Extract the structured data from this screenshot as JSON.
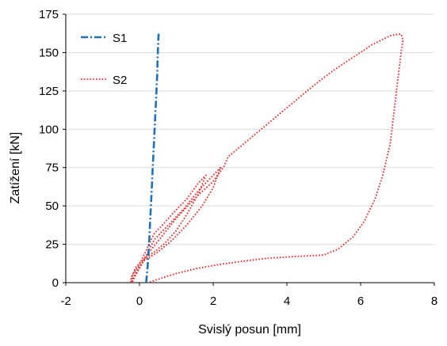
{
  "chart_data": {
    "type": "line",
    "xlabel": "Svislý posun [mm]",
    "ylabel": "Zatížení [kN]",
    "xlim": [
      -2,
      8
    ],
    "ylim": [
      0,
      175
    ],
    "x_ticks": [
      -2,
      0,
      2,
      4,
      6,
      8
    ],
    "y_ticks": [
      0,
      25,
      50,
      75,
      100,
      125,
      150,
      175
    ],
    "x_tick_labels": [
      "-2",
      "0",
      "2",
      "4",
      "6",
      "8"
    ],
    "y_tick_labels": [
      "0",
      "25",
      "50",
      "75",
      "100",
      "125",
      "150",
      "175"
    ],
    "grid": "horizontal",
    "legend_position": "top-left",
    "series": [
      {
        "name": "S1",
        "color": "#1f6fb4",
        "style": "dash-dot",
        "points": [
          [
            0.18,
            0
          ],
          [
            0.2,
            5
          ],
          [
            0.22,
            10
          ],
          [
            0.24,
            18
          ],
          [
            0.26,
            25
          ],
          [
            0.28,
            35
          ],
          [
            0.3,
            45
          ],
          [
            0.32,
            55
          ],
          [
            0.34,
            65
          ],
          [
            0.36,
            75
          ],
          [
            0.38,
            85
          ],
          [
            0.4,
            95
          ],
          [
            0.42,
            105
          ],
          [
            0.44,
            115
          ],
          [
            0.46,
            125
          ],
          [
            0.48,
            135
          ],
          [
            0.49,
            145
          ],
          [
            0.5,
            152
          ],
          [
            0.51,
            158
          ],
          [
            0.52,
            163
          ]
        ]
      },
      {
        "name": "S2",
        "color": "#e8201c",
        "style": "dotted",
        "points": [
          [
            -0.25,
            0
          ],
          [
            -0.2,
            5
          ],
          [
            0.0,
            12
          ],
          [
            0.2,
            22
          ],
          [
            0.4,
            32
          ],
          [
            0.6,
            37
          ],
          [
            0.9,
            45
          ],
          [
            1.3,
            55
          ],
          [
            1.6,
            65
          ],
          [
            1.8,
            70
          ],
          [
            1.6,
            58
          ],
          [
            1.3,
            45
          ],
          [
            1.0,
            34
          ],
          [
            0.7,
            26
          ],
          [
            0.4,
            20
          ],
          [
            0.1,
            15
          ],
          [
            -0.1,
            10
          ],
          [
            -0.2,
            4
          ],
          [
            -0.22,
            0
          ],
          [
            -0.15,
            4
          ],
          [
            0.1,
            14
          ],
          [
            0.4,
            28
          ],
          [
            0.8,
            38
          ],
          [
            1.2,
            48
          ],
          [
            1.6,
            60
          ],
          [
            2.0,
            70
          ],
          [
            2.2,
            75
          ],
          [
            2.0,
            62
          ],
          [
            1.7,
            50
          ],
          [
            1.3,
            38
          ],
          [
            0.9,
            28
          ],
          [
            0.5,
            20
          ],
          [
            0.1,
            14
          ],
          [
            -0.12,
            6
          ],
          [
            -0.18,
            1
          ],
          [
            -0.1,
            5
          ],
          [
            0.2,
            18
          ],
          [
            0.6,
            30
          ],
          [
            1.0,
            42
          ],
          [
            1.5,
            55
          ],
          [
            2.0,
            66
          ],
          [
            2.3,
            76
          ],
          [
            2.4,
            82
          ],
          [
            2.8,
            90
          ],
          [
            3.3,
            100
          ],
          [
            3.8,
            110
          ],
          [
            4.3,
            120
          ],
          [
            4.8,
            130
          ],
          [
            5.3,
            139
          ],
          [
            5.8,
            147
          ],
          [
            6.3,
            155
          ],
          [
            6.8,
            161
          ],
          [
            7.0,
            162
          ],
          [
            7.1,
            162
          ],
          [
            7.15,
            158
          ],
          [
            7.1,
            150
          ],
          [
            7.05,
            140
          ],
          [
            7.0,
            130
          ],
          [
            6.95,
            120
          ],
          [
            6.9,
            110
          ],
          [
            6.85,
            100
          ],
          [
            6.8,
            90
          ],
          [
            6.7,
            80
          ],
          [
            6.6,
            70
          ],
          [
            6.4,
            55
          ],
          [
            6.1,
            40
          ],
          [
            5.8,
            30
          ],
          [
            5.4,
            22
          ],
          [
            5.0,
            18
          ],
          [
            4.2,
            17
          ],
          [
            3.5,
            16
          ],
          [
            2.8,
            14
          ],
          [
            2.2,
            12
          ],
          [
            1.5,
            9
          ],
          [
            1.0,
            6
          ],
          [
            0.6,
            3
          ],
          [
            0.35,
            1
          ],
          [
            0.25,
            0
          ]
        ]
      }
    ]
  }
}
